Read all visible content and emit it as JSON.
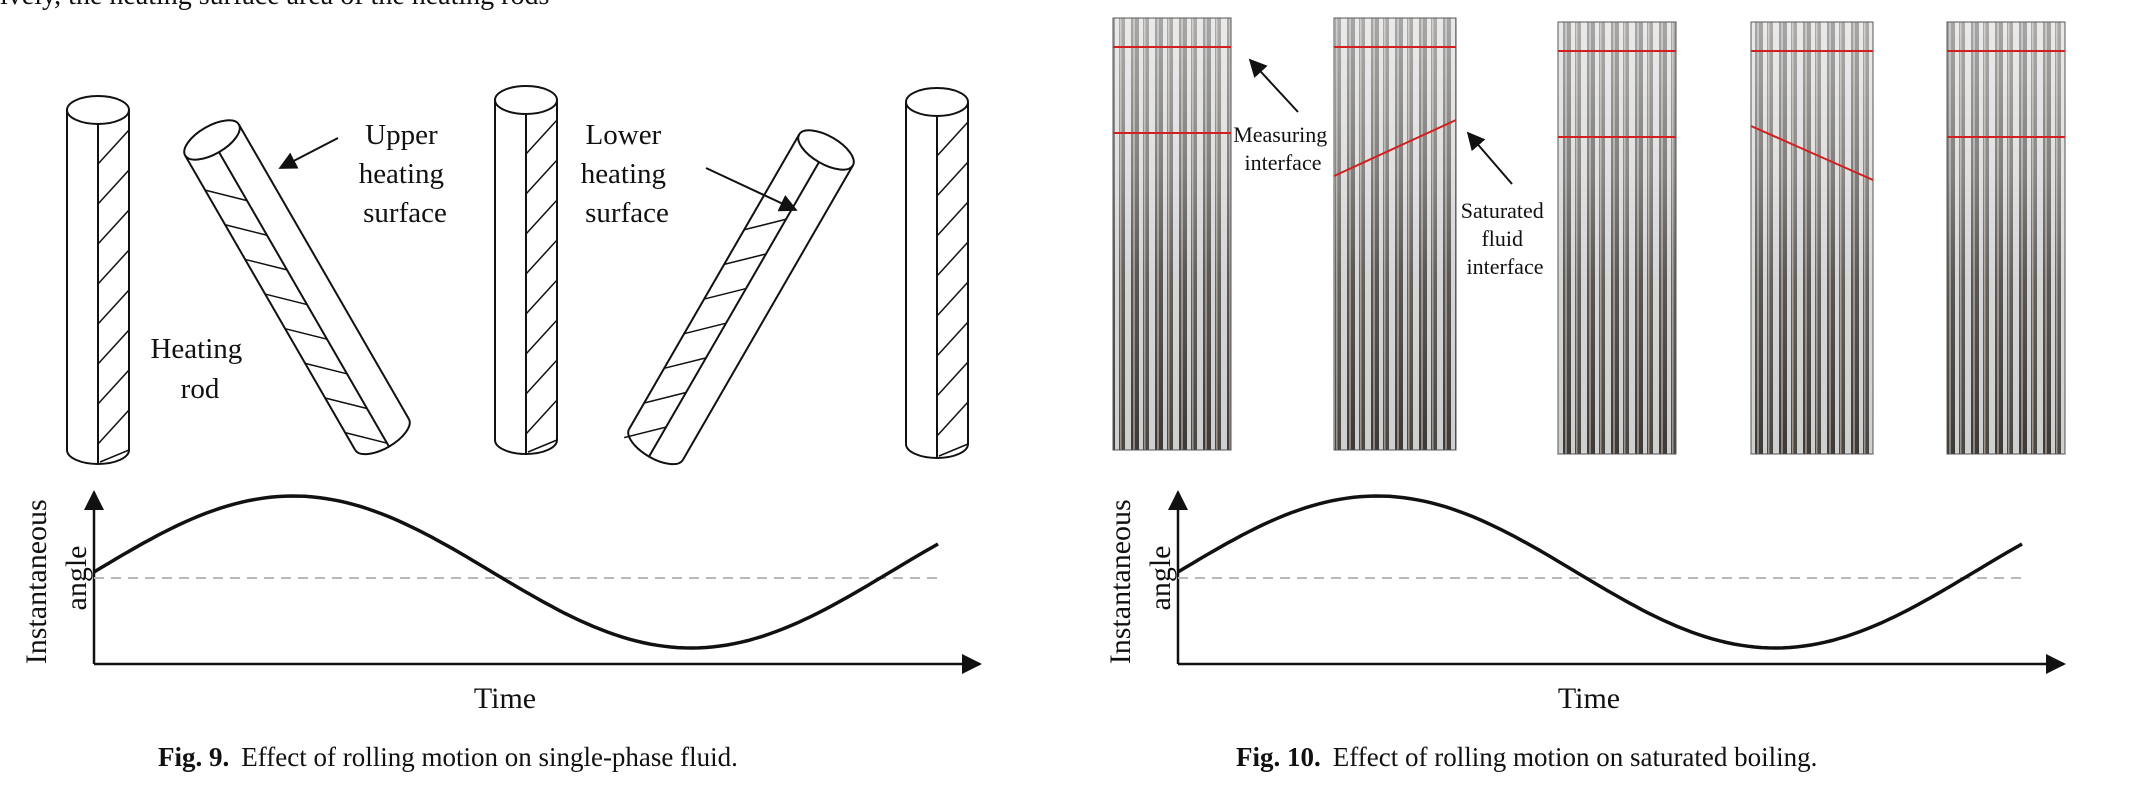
{
  "top_text": "ively, the heating surface area of the heating rods",
  "figure9": {
    "labels": {
      "upper": [
        "Upper",
        "heating",
        "surface"
      ],
      "lower": [
        "Lower",
        "heating",
        "surface"
      ],
      "rod": [
        "Heating",
        "rod"
      ]
    },
    "axis": {
      "ylabel_line1": "Instantaneous",
      "ylabel_line2": "angle",
      "xlabel": "Time"
    },
    "caption_num": "Fig. 9.",
    "caption_text": "Effect of rolling motion on single-phase fluid."
  },
  "figure10": {
    "labels": {
      "measuring": [
        "Measuring",
        "interface"
      ],
      "saturated": [
        "Saturated",
        "fluid",
        "interface"
      ]
    },
    "axis": {
      "ylabel_line1": "Instantaneous",
      "ylabel_line2": "angle",
      "xlabel": "Time"
    },
    "caption_num": "Fig. 10.",
    "caption_text": "Effect of rolling motion on saturated boiling."
  },
  "colors": {
    "interface_line": "#d21f1f",
    "dashed": "#b8b8b8",
    "ink": "#111111"
  }
}
